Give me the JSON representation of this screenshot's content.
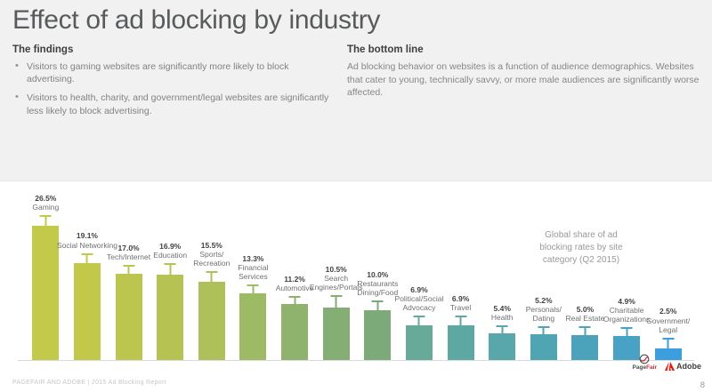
{
  "slide": {
    "title": "Effect of ad blocking by industry",
    "footer": "PAGEFAIR AND ADOBE | 2015 Ad Blocking Report",
    "page_number": "8"
  },
  "findings": {
    "heading": "The findings",
    "bullet_marker": "•",
    "bullets": [
      "Visitors to gaming websites are significantly more likely to block advertising.",
      "Visitors to health, charity, and government/legal websites are significantly less likely to block advertising."
    ]
  },
  "bottom_line": {
    "heading": "The bottom line",
    "text": "Ad blocking behavior on websites is a function of audience demographics. Websites that cater to young, technically savvy, or more male audiences are significantly worse affected."
  },
  "chart_data": {
    "type": "bar",
    "title": "",
    "xlabel": "",
    "ylabel": "",
    "ylim": [
      0,
      30
    ],
    "grid": false,
    "value_suffix": "%",
    "annotation": "Global share of ad\nblocking rates by site\ncategory (Q2 2015)",
    "categories": [
      "Gaming",
      "Social Networking",
      "Tech/Internet",
      "Education",
      "Sports/\nRecreation",
      "Financial\nServices",
      "Automotive",
      "Search\nEngines/Portals",
      "Restaurants\nDining/Food",
      "Political/Social\nAdvocacy",
      "Travel",
      "Health",
      "Personals/\nDating",
      "Real Estate",
      "Charitable\nOrganizations",
      "Government/\nLegal"
    ],
    "values": [
      26.5,
      19.1,
      17.0,
      16.9,
      15.5,
      13.3,
      11.2,
      10.5,
      10.0,
      6.9,
      6.9,
      5.4,
      5.2,
      5.0,
      4.9,
      2.5
    ],
    "errors": [
      2.0,
      2.0,
      1.8,
      2.2,
      2.0,
      1.6,
      1.5,
      2.3,
      1.8,
      1.9,
      2.0,
      1.5,
      1.6,
      1.8,
      1.7,
      2.1
    ],
    "colors": [
      "#c3ca49",
      "#c2c94a",
      "#bcc64e",
      "#b6c353",
      "#adc05a",
      "#9dba64",
      "#8fb36c",
      "#85ae74",
      "#7daa79",
      "#68aa99",
      "#5ea8a3",
      "#57a7ab",
      "#50a5b2",
      "#4ba3bb",
      "#47a2c6",
      "#3c9fdd"
    ]
  },
  "logos": {
    "pagefair_part1": "Page",
    "pagefair_part2": "Fair",
    "adobe": "Adobe"
  },
  "theme": {
    "header_bg": "#f0f1f0",
    "panel_bg": "#ffffff",
    "baseline": "#d9dadb",
    "pagefair_red": "#d22630",
    "adobe_red": "#fa0f00"
  }
}
